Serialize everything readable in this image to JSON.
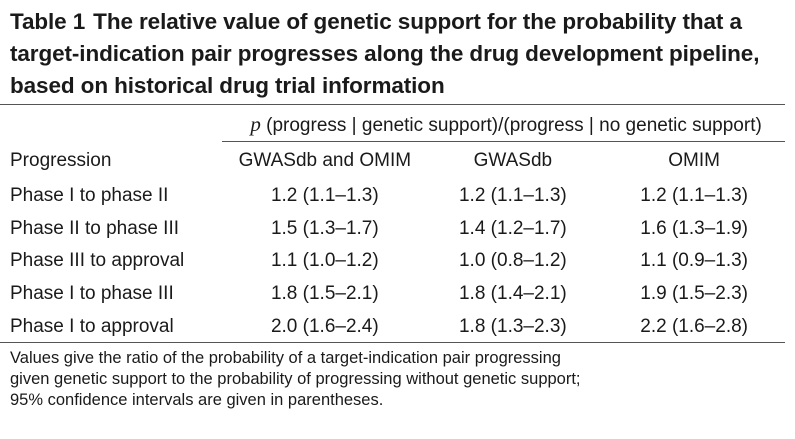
{
  "caption": {
    "label": "Table 1",
    "text": "The relative value of genetic support for the probability that a target-indication pair progresses along the drug development pipeline, based on historical drug trial information"
  },
  "table": {
    "span_header": {
      "p": "p",
      "rest": " (progress | genetic support)/(progress | no genetic support)"
    },
    "columns": [
      "Progression",
      "GWASdb and OMIM",
      "GWASdb",
      "OMIM"
    ],
    "rows": [
      {
        "progression": "Phase I to phase II",
        "both": "1.2 (1.1–1.3)",
        "gwasdb": "1.2 (1.1–1.3)",
        "omim": "1.2 (1.1–1.3)"
      },
      {
        "progression": "Phase II to phase III",
        "both": "1.5 (1.3–1.7)",
        "gwasdb": "1.4 (1.2–1.7)",
        "omim": "1.6 (1.3–1.9)"
      },
      {
        "progression": "Phase III to approval",
        "both": "1.1 (1.0–1.2)",
        "gwasdb": "1.0 (0.8–1.2)",
        "omim": "1.1 (0.9–1.3)"
      },
      {
        "progression": "Phase I to phase III",
        "both": "1.8 (1.5–2.1)",
        "gwasdb": "1.8 (1.4–2.1)",
        "omim": "1.9 (1.5–2.3)"
      },
      {
        "progression": "Phase I to approval",
        "both": "2.0 (1.6–2.4)",
        "gwasdb": "1.8 (1.3–2.3)",
        "omim": "2.2 (1.6–2.8)"
      }
    ]
  },
  "footnote": {
    "lines": [
      "Values give the ratio of the probability of a target-indication pair progressing",
      "given genetic support to the probability of progressing without genetic support;",
      "95% confidence intervals are given in parentheses."
    ]
  }
}
